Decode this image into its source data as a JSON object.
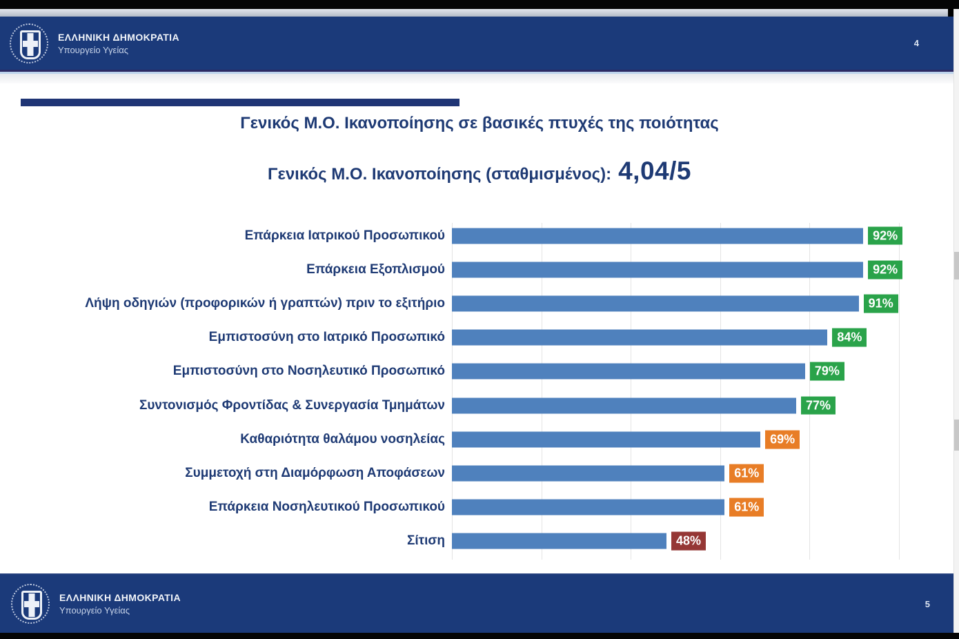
{
  "header": {
    "brand_line1": "ΕΛΛΗΝΙΚΗ ΔΗΜΟΚΡΑΤΙΑ",
    "brand_line2": "Υπουργείο Υγείας",
    "page_number": "4"
  },
  "footer": {
    "brand_line1": "ΕΛΛΗΝΙΚΗ ΔΗΜΟΚΡΑΤΙΑ",
    "brand_line2": "Υπουργείο Υγείας",
    "page_number": "5"
  },
  "slide": {
    "title": "Γενικός Μ.Ο. Ικανοποίησης σε βασικές πτυχές της ποιότητας",
    "subtitle_prefix": "Γενικός Μ.Ο. Ικανοποίησης (σταθμισμένος):",
    "subtitle_value": "4,04/5"
  },
  "chart_data": {
    "type": "bar",
    "orientation": "horizontal",
    "title": "Γενικός Μ.Ο. Ικανοποίησης σε βασικές πτυχές της ποιότητας",
    "annotation": "Γενικός Μ.Ο. Ικανοποίησης (σταθμισμένος): 4,04/5",
    "categories": [
      "Επάρκεια Ιατρικού Προσωπικού",
      "Επάρκεια Εξοπλισμού",
      "Λήψη οδηγιών (προφορικών ή γραπτών) πριν το εξιτήριο",
      "Εμπιστοσύνη στο Ιατρικό Προσωπικό",
      "Εμπιστοσύνη στο Νοσηλευτικό Προσωπικό",
      "Συντονισμός Φροντίδας & Συνεργασία Τμημάτων",
      "Καθαριότητα θαλάμου νοσηλείας",
      "Συμμετοχή στη Διαμόρφωση Αποφάσεων",
      "Επάρκεια Νοσηλευτικού Προσωπικού",
      "Σίτιση"
    ],
    "values": [
      92,
      92,
      91,
      84,
      79,
      77,
      69,
      61,
      61,
      48
    ],
    "value_labels": [
      "92%",
      "92%",
      "91%",
      "84%",
      "79%",
      "77%",
      "69%",
      "61%",
      "61%",
      "48%"
    ],
    "badge_tiers": [
      "green",
      "green",
      "green",
      "green",
      "green",
      "green",
      "orange",
      "orange",
      "orange",
      "red"
    ],
    "xlim": [
      0,
      100
    ],
    "gridlines_percent": [
      0,
      20,
      40,
      60,
      80,
      100
    ],
    "grid": "vertical-only",
    "axis_tick_labels_visible": false,
    "legend": "none",
    "bar_color": "#4f81bd",
    "tier_colors": {
      "green": "#2aa34a",
      "orange": "#e87d26",
      "red": "#953735"
    }
  },
  "colors": {
    "band_navy": "#1b3a7a",
    "accent_bar_navy": "#1f3575",
    "title_navy": "#1e3a74",
    "bar_blue": "#4f81bd",
    "badge_green": "#2aa34a",
    "badge_orange": "#e87d26",
    "badge_red": "#953735"
  }
}
